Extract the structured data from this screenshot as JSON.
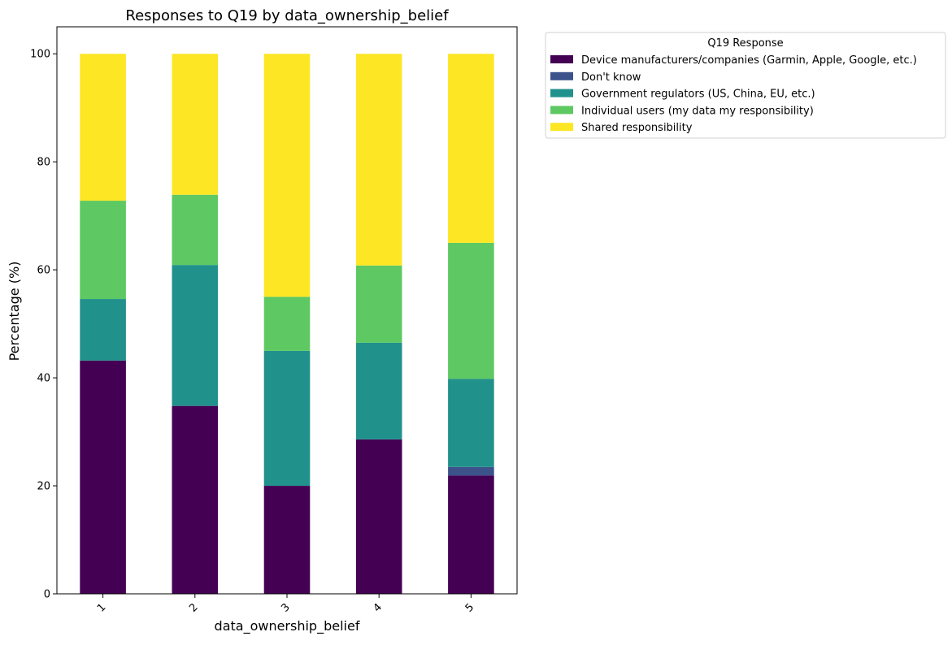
{
  "chart_data": {
    "type": "bar",
    "stacked": true,
    "title": "Responses to Q19 by data_ownership_belief",
    "xlabel": "data_ownership_belief",
    "ylabel": "Percentage (%)",
    "ylim": [
      0,
      105
    ],
    "yticks": [
      0,
      20,
      40,
      60,
      80,
      100
    ],
    "categories": [
      "1",
      "2",
      "3",
      "4",
      "5"
    ],
    "grid": false,
    "legend": {
      "title": "Q19 Response",
      "placement": "outside-top-right"
    },
    "series": [
      {
        "name": "Device manufacturers/companies (Garmin, Apple, Google, etc.)",
        "color": "#440154",
        "values": [
          43.2,
          34.8,
          20.0,
          28.6,
          21.9
        ]
      },
      {
        "name": "Don't know",
        "color": "#3b528b",
        "values": [
          0,
          0,
          0,
          0,
          1.6
        ]
      },
      {
        "name": "Government regulators (US, China, EU, etc.)",
        "color": "#21918c",
        "values": [
          11.4,
          26.1,
          25.0,
          17.9,
          16.3
        ]
      },
      {
        "name": "Individual users (my data my responsibility)",
        "color": "#5ec962",
        "values": [
          18.2,
          13.0,
          10.0,
          14.3,
          25.2
        ]
      },
      {
        "name": "Shared responsibility",
        "color": "#fde725",
        "values": [
          27.2,
          26.1,
          45.0,
          39.2,
          35.0
        ]
      }
    ]
  }
}
